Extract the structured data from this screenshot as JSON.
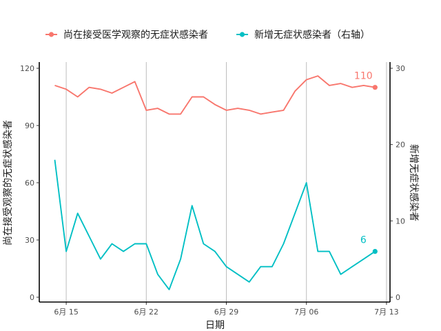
{
  "chart_data": {
    "type": "line",
    "title": "",
    "xlabel": "日期",
    "ylabel": "尚在接受观察的无症状感染者",
    "y2label": "新增无症状感染者",
    "x_start": "2020-06-14",
    "x": [
      "6月14",
      "6月15",
      "6月16",
      "6月17",
      "6月18",
      "6月19",
      "6月20",
      "6月21",
      "6月22",
      "6月23",
      "6月24",
      "6月25",
      "6月26",
      "6月27",
      "6月28",
      "6月29",
      "6月30",
      "7月01",
      "7月02",
      "7月03",
      "7月04",
      "7月05",
      "7月06",
      "7月07",
      "7月08",
      "7月09",
      "7月10",
      "7月11",
      "7月12"
    ],
    "x_ticks": [
      "6月 15",
      "6月 22",
      "6月 29",
      "7月 06",
      "7月 13"
    ],
    "ylim": [
      0,
      120
    ],
    "y_ticks": [
      "0",
      "30",
      "60",
      "90",
      "120"
    ],
    "y2lim": [
      0,
      30
    ],
    "y2_ticks": [
      "0",
      "10",
      "20",
      "30"
    ],
    "grid": "vertical",
    "legend": "top",
    "series": [
      {
        "name": "尚在接受医学观察的无症状感染者",
        "axis": "left",
        "color": "#F8766D",
        "values": [
          111,
          109,
          105,
          110,
          109,
          107,
          110,
          113,
          98,
          99,
          96,
          96,
          105,
          105,
          101,
          98,
          99,
          98,
          96,
          97,
          98,
          108,
          114,
          116,
          111,
          112,
          110,
          111,
          110
        ],
        "end_label": "110"
      },
      {
        "name": "新增无症状感染者（右轴）",
        "axis": "right",
        "color": "#00BFC4",
        "values": [
          18,
          6,
          11,
          8,
          5,
          7,
          6,
          7,
          7,
          3,
          1,
          5,
          12,
          7,
          6,
          4,
          3,
          2,
          4,
          4,
          7,
          11,
          15,
          6,
          6,
          3,
          4,
          5,
          6
        ],
        "end_label": "6"
      }
    ]
  }
}
